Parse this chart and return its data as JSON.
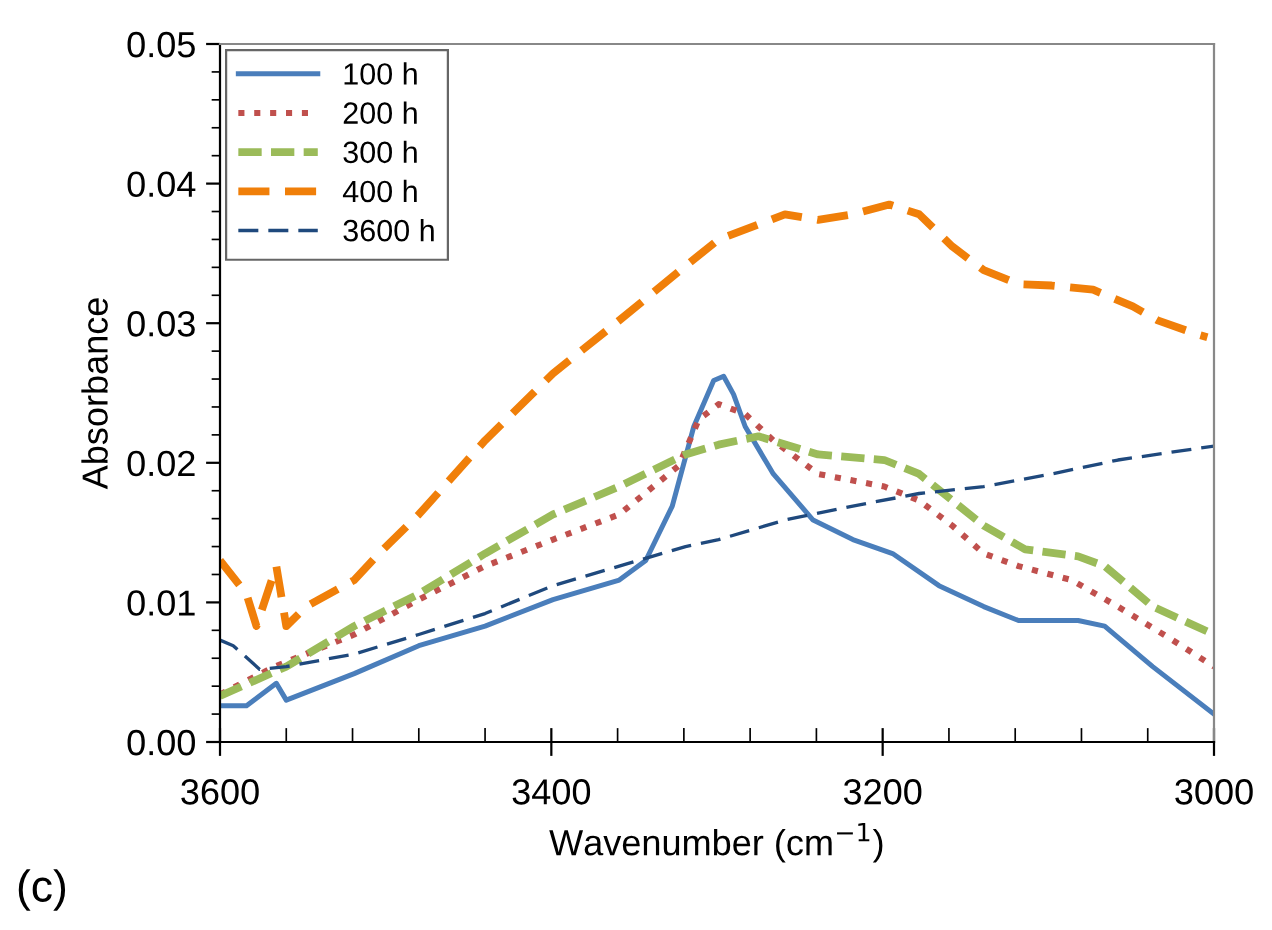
{
  "chart_data": {
    "type": "line",
    "xlabel": "Wavenumber (cm$^{−1}$)",
    "ylabel": "Absorbance",
    "annotations": [
      "(c)"
    ],
    "xlim": [
      3600,
      3000
    ],
    "xticks": [
      3600,
      3400,
      3200,
      3000
    ],
    "ylim": [
      0,
      0.05
    ],
    "yticks": [
      {
        "value": 0,
        "label": "0.00"
      },
      {
        "value": 0.01,
        "label": "0.01"
      },
      {
        "value": 0.02,
        "label": "0.02"
      },
      {
        "value": 0.03,
        "label": "0.03"
      },
      {
        "value": 0.04,
        "label": "0.04"
      },
      {
        "value": 0.05,
        "label": "0.05"
      }
    ],
    "grid": false,
    "legend": "top left",
    "marker": "none",
    "series": [
      {
        "name": "100 h",
        "color": "#4a7ebb",
        "line_style": "solid",
        "x": [
          3600,
          3584,
          3566,
          3560,
          3519,
          3480,
          3440,
          3399,
          3359,
          3343,
          3327,
          3314,
          3302,
          3296,
          3290,
          3283,
          3266,
          3242,
          3218,
          3194,
          3166,
          3139,
          3118,
          3082,
          3066,
          3037,
          3000
        ],
        "values": [
          0.0026,
          0.0026,
          0.0042,
          0.003,
          0.0049,
          0.0069,
          0.0083,
          0.0102,
          0.0116,
          0.013,
          0.0169,
          0.0226,
          0.0259,
          0.0262,
          0.0249,
          0.0226,
          0.0192,
          0.0159,
          0.0145,
          0.0135,
          0.0112,
          0.0097,
          0.0087,
          0.0087,
          0.0083,
          0.0054,
          0.002
        ]
      },
      {
        "name": "200 h",
        "color": "#c0504d",
        "line_style": "dotted",
        "x": [
          3600,
          3567,
          3519,
          3480,
          3440,
          3399,
          3359,
          3323,
          3311,
          3299,
          3283,
          3266,
          3239,
          3199,
          3178,
          3158,
          3139,
          3118,
          3086,
          3058,
          3025,
          3000
        ],
        "values": [
          0.0034,
          0.0054,
          0.0077,
          0.0102,
          0.0126,
          0.0145,
          0.0163,
          0.0198,
          0.0231,
          0.0242,
          0.0235,
          0.0216,
          0.0192,
          0.0183,
          0.0173,
          0.0155,
          0.0135,
          0.0126,
          0.0116,
          0.0097,
          0.0073,
          0.0054
        ]
      },
      {
        "name": "300 h",
        "color": "#9bbb59",
        "line_style": "dashed",
        "x": [
          3600,
          3560,
          3519,
          3480,
          3440,
          3399,
          3359,
          3319,
          3299,
          3287,
          3275,
          3239,
          3199,
          3178,
          3158,
          3139,
          3114,
          3082,
          3066,
          3037,
          3000
        ],
        "values": [
          0.0033,
          0.0054,
          0.0083,
          0.0106,
          0.0135,
          0.0163,
          0.0183,
          0.0206,
          0.0213,
          0.0216,
          0.0219,
          0.0206,
          0.0202,
          0.0192,
          0.0173,
          0.0155,
          0.0138,
          0.0133,
          0.0126,
          0.0097,
          0.0077
        ]
      },
      {
        "name": "400 h",
        "color": "#f07f09",
        "line_style": "dashed",
        "x": [
          3600,
          3584,
          3578,
          3566,
          3560,
          3548,
          3519,
          3504,
          3480,
          3440,
          3399,
          3359,
          3319,
          3299,
          3259,
          3239,
          3218,
          3196,
          3178,
          3158,
          3139,
          3118,
          3098,
          3073,
          3049,
          3034,
          3010,
          3004
        ],
        "values": [
          0.013,
          0.0106,
          0.0083,
          0.0126,
          0.0083,
          0.0097,
          0.0116,
          0.0135,
          0.0163,
          0.0216,
          0.0264,
          0.0302,
          0.0341,
          0.036,
          0.0378,
          0.0374,
          0.0378,
          0.0385,
          0.0378,
          0.0355,
          0.0338,
          0.0328,
          0.0327,
          0.0324,
          0.0312,
          0.0302,
          0.0292,
          0.029
        ]
      },
      {
        "name": "3600 h",
        "color": "#1f497d",
        "line_style": "dashed",
        "x": [
          3600,
          3592,
          3576,
          3560,
          3519,
          3480,
          3440,
          3399,
          3359,
          3319,
          3299,
          3259,
          3218,
          3178,
          3139,
          3098,
          3058,
          3000
        ],
        "values": [
          0.0073,
          0.0069,
          0.0052,
          0.0054,
          0.0063,
          0.0077,
          0.0092,
          0.0112,
          0.0126,
          0.014,
          0.0145,
          0.0159,
          0.0169,
          0.0178,
          0.0183,
          0.0192,
          0.0202,
          0.0212
        ]
      }
    ]
  }
}
